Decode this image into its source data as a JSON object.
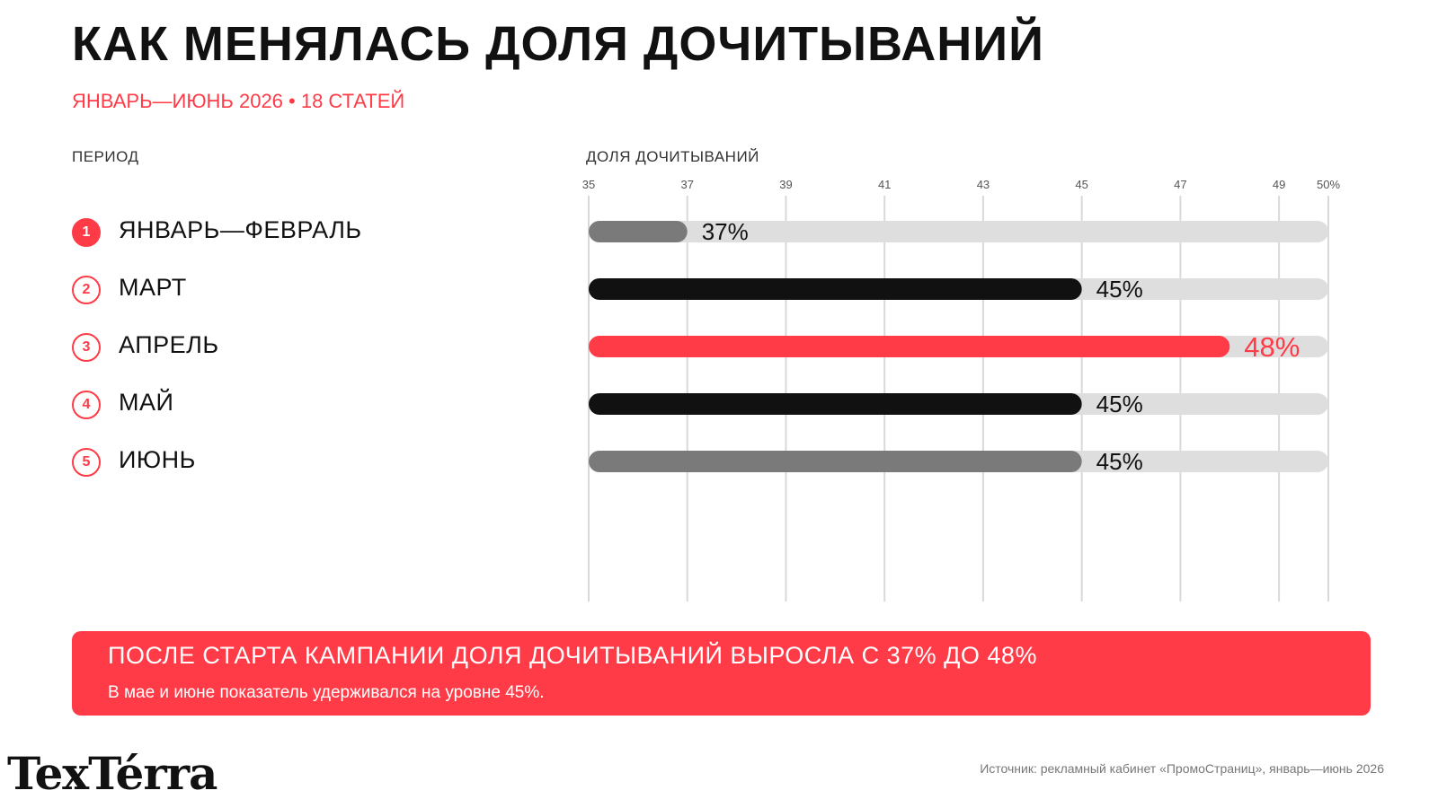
{
  "title": "КАК МЕНЯЛАСЬ ДОЛЯ ДОЧИТЫВАНИЙ",
  "subtitle": "ЯНВАРЬ—ИЮНЬ 2026 • 18 СТАТЕЙ",
  "columns": {
    "period": "ПЕРИОД",
    "share": "ДОЛЯ ДОЧИТЫВАНИЙ"
  },
  "colors": {
    "accent": "#ff3b47",
    "dark": "#111111",
    "gray": "#7a7a7a",
    "track": "#dedede",
    "grid": "#d9d9d9"
  },
  "chart_data": {
    "type": "bar",
    "orientation": "horizontal",
    "xlabel": "ДОЛЯ ДОЧИТЫВАНИЙ",
    "xlim": [
      35,
      50
    ],
    "ticks": [
      {
        "value": 35,
        "label": "35"
      },
      {
        "value": 37,
        "label": "37"
      },
      {
        "value": 39,
        "label": "39"
      },
      {
        "value": 41,
        "label": "41"
      },
      {
        "value": 43,
        "label": "43"
      },
      {
        "value": 45,
        "label": "45"
      },
      {
        "value": 47,
        "label": "47"
      },
      {
        "value": 49,
        "label": "49"
      },
      {
        "value": 50,
        "label": "50%"
      }
    ],
    "grid": true,
    "bars": [
      {
        "index": "1",
        "category": "ЯНВАРЬ—ФЕВРАЛЬ",
        "value": 37,
        "label": "37%",
        "color": "#7a7a7a",
        "label_color": "#111111",
        "active": true
      },
      {
        "index": "2",
        "category": "МАРТ",
        "value": 45,
        "label": "45%",
        "color": "#111111",
        "label_color": "#111111",
        "active": false
      },
      {
        "index": "3",
        "category": "АПРЕЛЬ",
        "value": 48,
        "label": "48%",
        "color": "#ff3b47",
        "label_color": "#ff3b47",
        "active": false
      },
      {
        "index": "4",
        "category": "МАЙ",
        "value": 45,
        "label": "45%",
        "color": "#111111",
        "label_color": "#111111",
        "active": false
      },
      {
        "index": "5",
        "category": "ИЮНЬ",
        "value": 45,
        "label": "45%",
        "color": "#7a7a7a",
        "label_color": "#111111",
        "active": false
      }
    ]
  },
  "callout": {
    "title": "ПОСЛЕ СТАРТА КАМПАНИИ ДОЛЯ ДОЧИТЫВАНИЙ ВЫРОСЛА С 37% ДО 48%",
    "text": "В мае и июне показатель удерживался на уровне 45%."
  },
  "logo": "TexTérra",
  "source": "Источник: рекламный кабинет «ПромоСтраниц», январь—июнь 2026"
}
